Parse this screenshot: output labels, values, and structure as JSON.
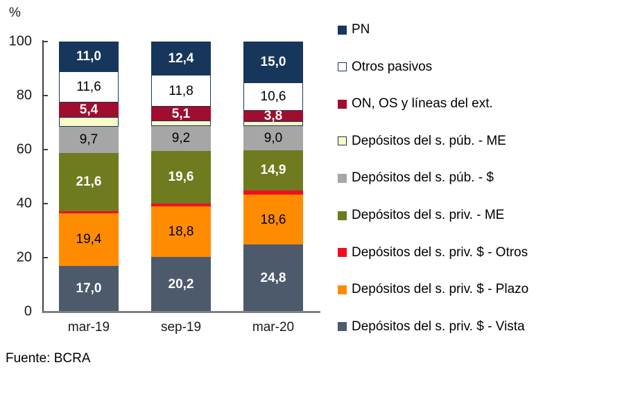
{
  "chart_data": {
    "type": "bar",
    "variant": "stacked-100-percent",
    "title": "",
    "unit_label": "%",
    "source": "Fuente: BCRA",
    "categories": [
      "mar-19",
      "sep-19",
      "mar-20"
    ],
    "ylim": [
      0,
      100
    ],
    "yticks": [
      0,
      20,
      40,
      60,
      80,
      100
    ],
    "grid": false,
    "legend_position": "right",
    "legend_order": "top_to_bottom_is_reverse_of_stack",
    "series_bottom_to_top": [
      {
        "name": "Depósitos del s. priv. $ - Vista",
        "color": "#4C5A6C",
        "label_color": "#FFFFFF",
        "label_bold": true,
        "values": [
          17.0,
          20.2,
          24.8
        ],
        "labels": [
          "17,0",
          "20,2",
          "24,8"
        ]
      },
      {
        "name": "Depósitos del s. priv. $ - Plazo",
        "color": "#FF8C00",
        "label_color": "#000000",
        "label_bold": false,
        "values": [
          19.4,
          18.8,
          18.6
        ],
        "labels": [
          "19,4",
          "18,8",
          "18,6"
        ]
      },
      {
        "name": "Depósitos del s. priv. $ - Otros",
        "color": "#F20D1E",
        "label_color": "#000000",
        "label_bold": false,
        "values": [
          0.8,
          1.0,
          1.5
        ],
        "labels": [
          null,
          null,
          null
        ]
      },
      {
        "name": "Depósitos del s. priv. - ME",
        "color": "#6F7B1E",
        "label_color": "#FFFFFF",
        "label_bold": true,
        "values": [
          21.6,
          19.6,
          14.9
        ],
        "labels": [
          "21,6",
          "19,6",
          "14,9"
        ]
      },
      {
        "name": "Depósitos del s. púb. - $",
        "color": "#A6A6A6",
        "label_color": "#000000",
        "label_bold": false,
        "values": [
          9.7,
          9.2,
          9.0
        ],
        "labels": [
          "9,7",
          "9,2",
          "9,0"
        ]
      },
      {
        "name": "Depósitos del s. púb. - ME",
        "color": "#FAFAC8",
        "border": "#16365C",
        "label_color": "#000000",
        "label_bold": false,
        "values": [
          3.5,
          1.9,
          1.8
        ],
        "labels": [
          null,
          null,
          null
        ]
      },
      {
        "name": "ON, OS y líneas del ext.",
        "color": "#A00D2E",
        "label_color": "#FFFFFF",
        "label_bold": true,
        "values": [
          5.4,
          5.1,
          3.8
        ],
        "labels": [
          "5,4",
          "5,1",
          "3,8"
        ]
      },
      {
        "name": "Otros pasivos",
        "color": "#FFFFFF",
        "border": "#16365C",
        "label_color": "#000000",
        "label_bold": false,
        "values": [
          11.6,
          11.8,
          10.6
        ],
        "labels": [
          "11,6",
          "11,8",
          "10,6"
        ]
      },
      {
        "name": "PN",
        "color": "#16365C",
        "label_color": "#FFFFFF",
        "label_bold": true,
        "values": [
          11.0,
          12.4,
          15.0
        ],
        "labels": [
          "11,0",
          "12,4",
          "15,0"
        ]
      }
    ]
  }
}
